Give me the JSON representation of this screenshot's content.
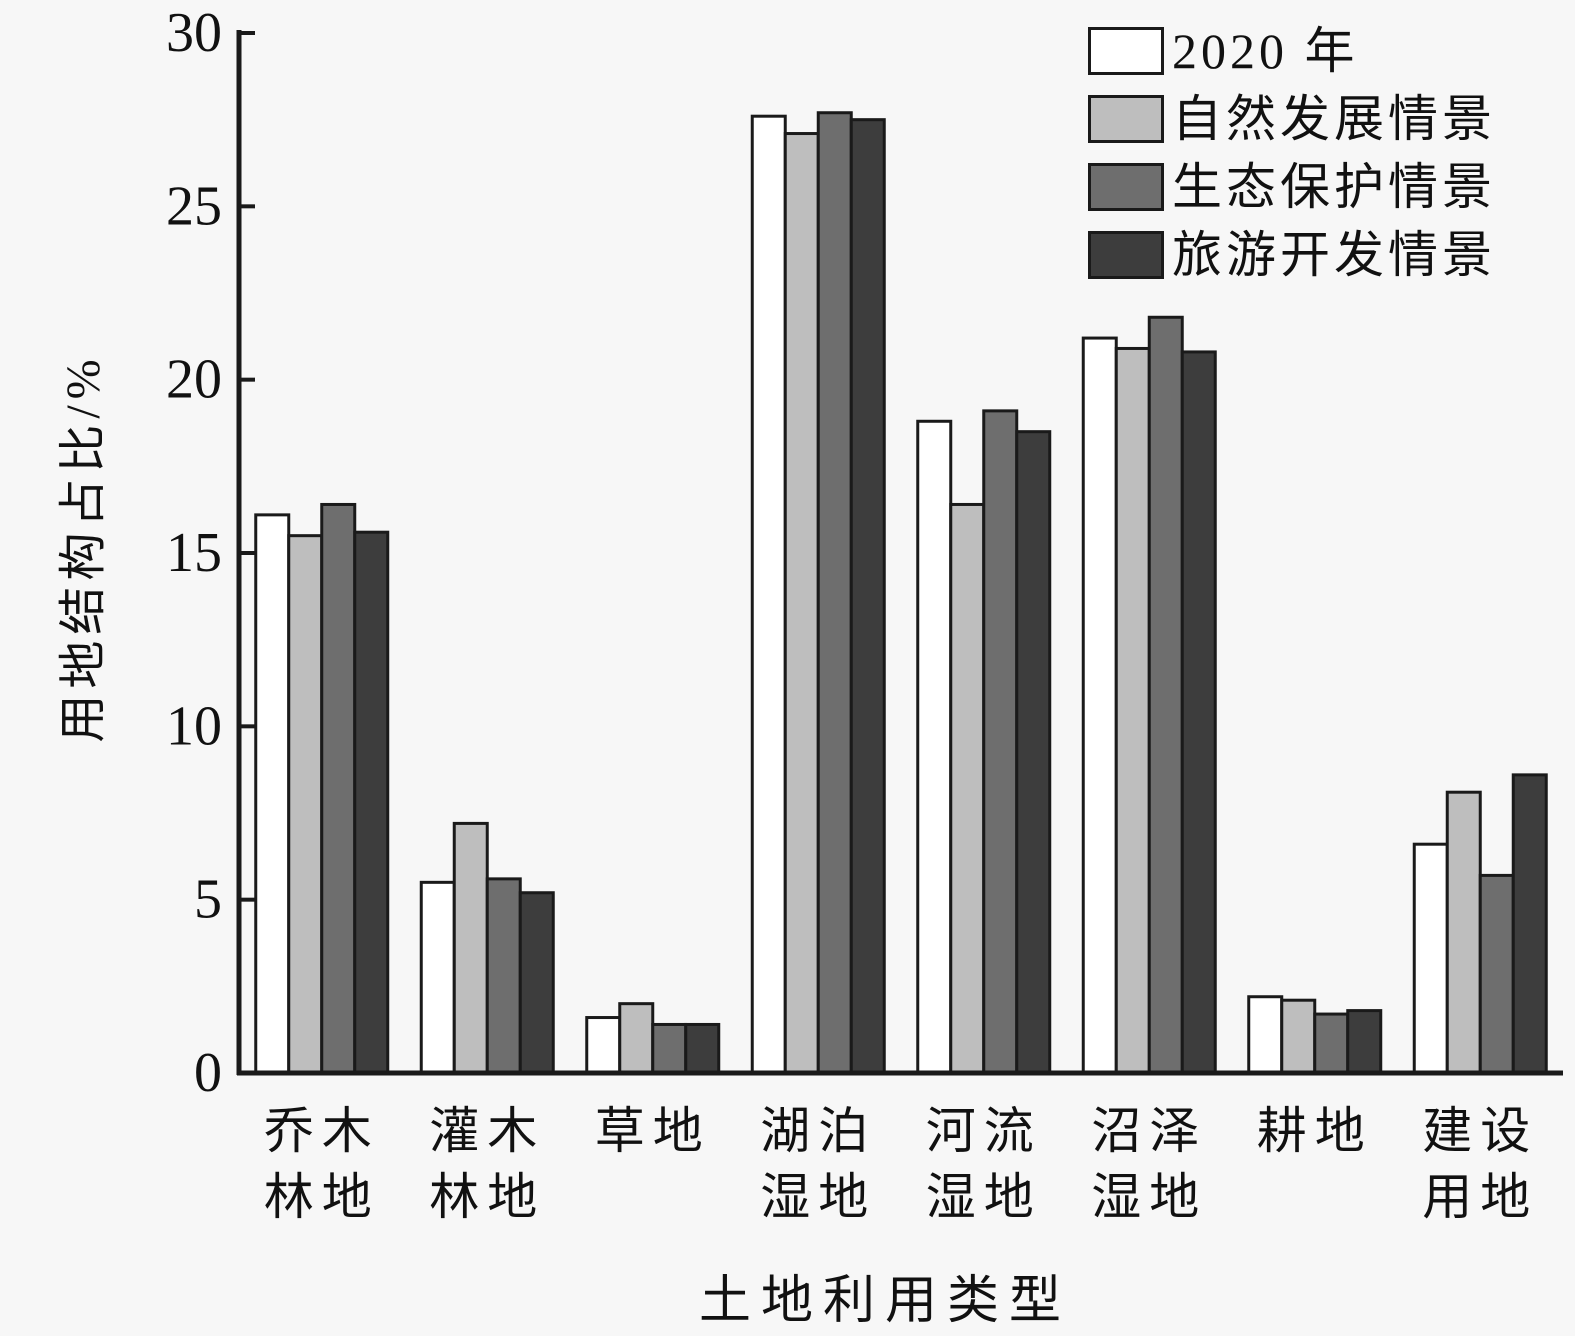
{
  "figure": {
    "background_color": "#f7f7f7",
    "axis_color": "#1a1a1a",
    "x_axis_title": "土地利用类型",
    "y_axis_title": "用地结构占比/%"
  },
  "chart_data": {
    "type": "bar",
    "title": "",
    "xlabel": "土地利用类型",
    "ylabel": "用地结构占比/%",
    "ylim": [
      0,
      30
    ],
    "y_ticks": [
      0,
      5,
      10,
      15,
      20,
      25,
      30
    ],
    "grid": false,
    "legend_position": "top-right",
    "bar_border_color": "#1a1a1a",
    "categories": [
      "乔木林地",
      "灌木林地",
      "草地",
      "湖泊湿地",
      "河流湿地",
      "沼泽湿地",
      "耕地",
      "建设用地"
    ],
    "category_label_lines": [
      [
        "乔木",
        "林地"
      ],
      [
        "灌木",
        "林地"
      ],
      [
        "草地"
      ],
      [
        "湖泊",
        "湿地"
      ],
      [
        "河流",
        "湿地"
      ],
      [
        "沼泽",
        "湿地"
      ],
      [
        "耕地"
      ],
      [
        "建设",
        "用地"
      ]
    ],
    "series": [
      {
        "name": "2020 年",
        "color": "#ffffff",
        "values": [
          16.1,
          5.5,
          1.6,
          27.6,
          18.8,
          21.2,
          2.2,
          6.6
        ]
      },
      {
        "name": "自然发展情景",
        "color": "#bebebe",
        "values": [
          15.5,
          7.2,
          2.0,
          27.1,
          16.4,
          20.9,
          2.1,
          8.1
        ]
      },
      {
        "name": "生态保护情景",
        "color": "#6e6e6e",
        "values": [
          16.4,
          5.6,
          1.4,
          27.7,
          19.1,
          21.8,
          1.7,
          5.7
        ]
      },
      {
        "name": "旅游开发情景",
        "color": "#3d3d3d",
        "values": [
          15.6,
          5.2,
          1.4,
          27.5,
          18.5,
          20.8,
          1.8,
          8.6
        ]
      }
    ]
  }
}
